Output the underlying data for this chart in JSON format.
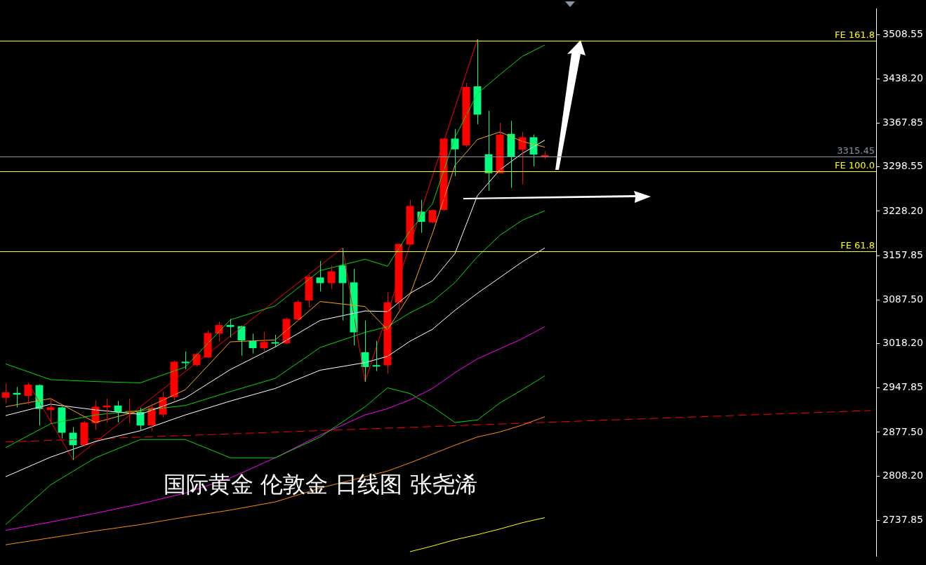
{
  "chart_data": {
    "type": "candlestick",
    "categories": [
      null,
      null,
      null,
      null,
      null,
      null,
      null,
      null,
      null,
      null,
      null,
      null,
      null,
      null,
      null,
      null,
      null,
      null,
      null,
      null,
      null,
      null,
      null,
      null,
      null,
      null,
      null,
      null,
      null,
      null,
      null,
      null,
      null,
      null,
      null,
      null,
      null,
      null,
      null,
      null,
      null,
      null,
      null,
      null,
      null,
      null,
      null,
      null,
      null,
      null,
      null,
      null,
      null,
      null,
      null,
      null,
      null,
      null,
      null,
      null,
      null,
      null,
      null,
      null,
      null,
      null,
      null,
      null,
      null,
      null,
      null,
      null,
      null,
      null,
      null,
      null,
      null,
      null
    ],
    "ohlc": [
      [
        2932.2,
        2954.8,
        2923.5,
        2940.8
      ],
      [
        2940.0,
        2949.4,
        2917.0,
        2937.2
      ],
      [
        2935.1,
        2955.9,
        2921.7,
        2953.0
      ],
      [
        2952.3,
        2953.4,
        2888.2,
        2914.6
      ],
      [
        2912.7,
        2930.7,
        2891.1,
        2917.0
      ],
      [
        2917.0,
        2918.0,
        2867.7,
        2876.8
      ],
      [
        2876.8,
        2885.7,
        2833.6,
        2857.0
      ],
      [
        2857.0,
        2895.5,
        2855.0,
        2893.0
      ],
      [
        2891.9,
        2927.8,
        2881.1,
        2918.1
      ],
      [
        2917.0,
        2930.7,
        2893.0,
        2919.9
      ],
      [
        2919.9,
        2927.1,
        2893.0,
        2909.8
      ],
      [
        2909.2,
        2930.7,
        2891.9,
        2911.6
      ],
      [
        2909.8,
        2916.3,
        2879.6,
        2888.2
      ],
      [
        2888.2,
        2922.4,
        2879.6,
        2916.3
      ],
      [
        2905.5,
        2941.6,
        2901.2,
        2933.2
      ],
      [
        2933.2,
        2991.0,
        2928.0,
        2989.4
      ],
      [
        2989.4,
        3005.6,
        2977.5,
        2987.2
      ],
      [
        2984.0,
        3003.7,
        2981.8,
        3001.6
      ],
      [
        2996.2,
        3039.3,
        2995.0,
        3035.0
      ],
      [
        3034.0,
        3053.1,
        3021.7,
        3047.7
      ],
      [
        3047.7,
        3057.4,
        3027.9,
        3044.7
      ],
      [
        3045.8,
        3046.9,
        2999.1,
        3023.2
      ],
      [
        3022.5,
        3034.0,
        3002.6,
        3011.0
      ],
      [
        3011.0,
        3036.9,
        3006.3,
        3020.7
      ],
      [
        3019.6,
        3032.2,
        3012.3,
        3018.2
      ],
      [
        3018.8,
        3059.5,
        3017.0,
        3057.4
      ],
      [
        3056.6,
        3087.3,
        3053.8,
        3084.3
      ],
      [
        3086.5,
        3126.8,
        3075.7,
        3124.3
      ],
      [
        3123.2,
        3149.1,
        3100.9,
        3114.2
      ],
      [
        3114.2,
        3142.3,
        3105.2,
        3132.9
      ],
      [
        3142.3,
        3169.6,
        3054.9,
        3114.2
      ],
      [
        3115.3,
        3136.9,
        3015.3,
        3036.1
      ],
      [
        3004.5,
        3054.9,
        2957.7,
        2981.0
      ],
      [
        2984.0,
        3022.5,
        2974.6,
        2981.8
      ],
      [
        2983.6,
        3099.8,
        2970.3,
        3083.6
      ],
      [
        3083.6,
        3177.0,
        3072.8,
        3176.4
      ],
      [
        3175.4,
        3246.3,
        3175.0,
        3236.6
      ],
      [
        3227.6,
        3246.3,
        3194.1,
        3211.4
      ],
      [
        3210.6,
        3231.0,
        3209.2,
        3230.1
      ],
      [
        3230.4,
        3344.0,
        3229.0,
        3343.4
      ],
      [
        3343.4,
        3358.8,
        3284.0,
        3326.5
      ],
      [
        3333.0,
        3431.9,
        3330.1,
        3425.4
      ],
      [
        3426.5,
        3501.0,
        3366.1,
        3381.5
      ],
      [
        3318.6,
        3387.7,
        3261.0,
        3288.7
      ],
      [
        3288.7,
        3368.6,
        3288.0,
        3349.9
      ],
      [
        3351.0,
        3371.5,
        3265.4,
        3315.0
      ],
      [
        3325.8,
        3354.2,
        3270.8,
        3345.6
      ],
      [
        3345.6,
        3349.9,
        3299.5,
        3318.2
      ],
      [
        3315.0,
        3323.6,
        3311.3,
        3315.45
      ],
      null,
      null,
      null,
      null,
      null,
      null,
      null,
      null,
      null,
      null,
      null,
      null,
      null,
      null,
      null,
      null,
      null,
      null,
      null,
      null,
      null,
      null,
      null,
      null,
      null,
      null,
      null,
      null,
      null
    ],
    "colors": [
      "#ff0000",
      "#00ff7f",
      "#ff0000",
      "#00ff7f",
      "#ff0000",
      "#00ff7f",
      "#00ff7f",
      "#ff0000",
      "#ff0000",
      "#ff0000",
      "#00ff7f",
      "#ff0000",
      "#00ff7f",
      "#ff0000",
      "#ff0000",
      "#ff0000",
      "#00ff7f",
      "#ff0000",
      "#ff0000",
      "#ff0000",
      "#00ff7f",
      "#00ff7f",
      "#00ff7f",
      "#ff0000",
      "#00ff7f",
      "#ff0000",
      "#ff0000",
      "#ff0000",
      "#00ff7f",
      "#ff0000",
      "#00ff7f",
      "#00ff7f",
      "#00ff7f",
      "#00ff7f",
      "#ff0000",
      "#ff0000",
      "#ff0000",
      "#00ff7f",
      "#ff0000",
      "#ff0000",
      "#00ff7f",
      "#ff0000",
      "#00ff7f",
      "#00ff7f",
      "#ff0000",
      "#00ff7f",
      "#ff0000",
      "#00ff7f",
      "#ff0000",
      null,
      null,
      null,
      null,
      null,
      null,
      null,
      null,
      null,
      null,
      null,
      null,
      null,
      null,
      null,
      null,
      null,
      null,
      null,
      null,
      null,
      null,
      null,
      null,
      null,
      null,
      null,
      null,
      null
    ],
    "series": [
      {
        "type": "line",
        "color": "#00dd00",
        "values": [
          2986,
          null,
          null,
          null,
          2961,
          null,
          null,
          null,
          2958,
          null,
          null,
          null,
          2956,
          null,
          null,
          null,
          2981,
          null,
          null,
          null,
          3056,
          null,
          null,
          null,
          3078,
          null,
          null,
          null,
          3134,
          null,
          null,
          null,
          3152,
          null,
          3141,
          null,
          3197,
          null,
          3240,
          null,
          3345,
          null,
          3415,
          null,
          3445,
          null,
          3474,
          null,
          3492,
          null,
          null,
          null,
          null,
          null,
          null,
          null,
          null,
          null,
          null,
          null,
          null,
          null,
          null,
          null,
          null,
          null,
          null,
          null,
          null,
          null,
          null,
          null,
          null,
          null,
          null,
          null,
          null,
          null
        ]
      },
      {
        "type": "line",
        "color": "#ffa500",
        "values": [
          2918,
          null,
          null,
          null,
          2931,
          null,
          null,
          null,
          2893,
          null,
          null,
          null,
          2912,
          null,
          null,
          null,
          2945,
          null,
          null,
          null,
          3021,
          null,
          null,
          null,
          3024,
          null,
          null,
          null,
          3085,
          null,
          null,
          null,
          3077,
          null,
          3040,
          null,
          3096,
          null,
          3193,
          null,
          3301,
          null,
          3342,
          null,
          3354,
          null,
          3339,
          null,
          3330,
          null,
          null,
          null,
          null,
          null,
          null,
          null,
          null,
          null,
          null,
          null,
          null,
          null,
          null,
          null,
          null,
          null,
          null,
          null,
          null,
          null,
          null,
          null,
          null,
          null,
          null,
          null,
          null,
          null
        ]
      },
      {
        "type": "line",
        "color": "#ffffff",
        "values": [
          2904,
          null,
          null,
          null,
          2922,
          null,
          null,
          null,
          2913,
          null,
          null,
          null,
          2906,
          null,
          null,
          null,
          2932,
          null,
          null,
          null,
          2977,
          null,
          null,
          null,
          3013,
          null,
          null,
          null,
          3055,
          null,
          null,
          null,
          3070,
          null,
          3069,
          null,
          3098,
          null,
          3118,
          null,
          3161,
          null,
          3253,
          null,
          3294,
          null,
          3320,
          null,
          3341,
          null,
          null,
          null,
          null,
          null,
          null,
          null,
          null,
          null,
          null,
          null,
          null,
          null,
          null,
          null,
          null,
          null,
          null,
          null,
          null,
          null,
          null,
          null,
          null,
          null,
          null,
          null,
          null,
          null
        ]
      },
      {
        "type": "line",
        "color": "#00dd00",
        "values": [
          2853,
          null,
          null,
          null,
          2891,
          null,
          null,
          null,
          2905,
          null,
          null,
          null,
          2912,
          null,
          null,
          null,
          2920,
          null,
          null,
          null,
          2942,
          null,
          null,
          null,
          2963,
          null,
          null,
          null,
          3012,
          null,
          null,
          null,
          3036,
          null,
          3045,
          null,
          3067,
          null,
          3085,
          null,
          3115,
          null,
          3156,
          null,
          3190,
          null,
          3214,
          null,
          3229,
          null,
          null,
          null,
          null,
          null,
          null,
          null,
          null,
          null,
          null,
          null,
          null,
          null,
          null,
          null,
          null,
          null,
          null,
          null,
          null,
          null,
          null,
          null,
          null,
          null,
          null,
          null,
          null,
          null
        ]
      },
      {
        "type": "line",
        "color": "#ffffff",
        "values": [
          2807,
          null,
          null,
          null,
          2838,
          null,
          null,
          null,
          2863,
          null,
          null,
          null,
          2880,
          null,
          null,
          null,
          2905,
          null,
          null,
          null,
          2927,
          null,
          null,
          null,
          2947,
          null,
          null,
          null,
          2976,
          null,
          null,
          null,
          2988,
          null,
          2998,
          null,
          3022,
          null,
          3041,
          null,
          3071,
          null,
          3098,
          null,
          3123,
          null,
          3148,
          null,
          3170,
          null,
          null,
          null,
          null,
          null,
          null,
          null,
          null,
          null,
          null,
          null,
          null,
          null,
          null,
          null,
          null,
          null,
          null,
          null,
          null,
          null,
          null,
          null,
          null,
          null,
          null,
          null,
          null,
          null
        ]
      },
      {
        "type": "line",
        "color": "#00dd00",
        "values": [
          2731,
          null,
          null,
          null,
          2794,
          null,
          null,
          null,
          2837,
          null,
          null,
          null,
          2866,
          null,
          null,
          null,
          2866,
          null,
          null,
          null,
          2837,
          null,
          null,
          null,
          2837,
          null,
          null,
          null,
          2870,
          null,
          null,
          null,
          2918,
          null,
          2948,
          null,
          2939,
          null,
          2918,
          null,
          2893,
          null,
          2897,
          null,
          2924,
          null,
          2945,
          null,
          2967,
          null,
          null,
          null,
          null,
          null,
          null,
          null,
          null,
          null,
          null,
          null,
          null,
          null,
          null,
          null,
          null,
          null,
          null,
          null,
          null,
          null,
          null,
          null,
          null,
          null,
          null,
          null,
          null,
          null
        ]
      },
      {
        "type": "line",
        "color": "#ff00ff",
        "values": [
          2722,
          null,
          null,
          null,
          2735,
          null,
          null,
          null,
          2749,
          null,
          null,
          null,
          2764,
          null,
          null,
          null,
          2781,
          null,
          null,
          null,
          2805,
          null,
          null,
          null,
          2837,
          null,
          null,
          null,
          2873,
          null,
          null,
          null,
          2905,
          null,
          2915,
          null,
          2929,
          null,
          2947,
          null,
          2972,
          null,
          2994,
          null,
          3010,
          null,
          3026,
          null,
          3045,
          null,
          null,
          null,
          null,
          null,
          null,
          null,
          null,
          null,
          null,
          null,
          null,
          null,
          null,
          null,
          null,
          null,
          null,
          null,
          null,
          null,
          null,
          null,
          null,
          null,
          null,
          null,
          null,
          null
        ]
      },
      {
        "type": "line",
        "color": "#ff8c00",
        "values": [
          2699,
          null,
          null,
          null,
          2710,
          null,
          null,
          null,
          2721,
          null,
          null,
          null,
          2731,
          null,
          null,
          null,
          2743,
          null,
          null,
          null,
          2754,
          null,
          null,
          null,
          2767,
          null,
          null,
          null,
          2789,
          null,
          null,
          null,
          2807,
          null,
          2816,
          null,
          2829,
          null,
          2843,
          null,
          2857,
          null,
          2870,
          null,
          2878,
          null,
          2889,
          null,
          2902,
          null,
          null,
          null,
          null,
          null,
          null,
          null,
          null,
          null,
          null,
          null,
          null,
          null,
          null,
          null,
          null,
          null,
          null,
          null,
          null,
          null,
          null,
          null,
          null,
          null,
          null,
          null,
          null,
          null
        ]
      },
      {
        "type": "line",
        "color": "#ffff00",
        "values": [
          null,
          null,
          null,
          null,
          null,
          null,
          null,
          null,
          null,
          null,
          null,
          null,
          null,
          null,
          null,
          null,
          null,
          null,
          null,
          null,
          null,
          null,
          null,
          null,
          null,
          null,
          null,
          null,
          null,
          null,
          null,
          null,
          null,
          null,
          null,
          null,
          2688,
          null,
          2697,
          null,
          2707,
          null,
          2715,
          null,
          2724,
          null,
          2734,
          null,
          2742,
          null,
          null,
          null,
          null,
          null,
          null,
          null,
          null,
          null,
          null,
          null,
          null,
          null,
          null,
          null,
          null,
          null,
          null,
          null,
          null,
          null,
          null,
          null,
          null,
          null,
          null,
          null,
          null,
          null
        ]
      },
      {
        "type": "line",
        "color": "#ff0000",
        "line_style": "dashed",
        "values": [
          2862,
          null,
          null,
          null,
          null,
          null,
          null,
          null,
          null,
          null,
          null,
          null,
          null,
          null,
          null,
          null,
          null,
          null,
          null,
          null,
          null,
          null,
          null,
          null,
          null,
          null,
          null,
          null,
          null,
          null,
          null,
          null,
          null,
          null,
          null,
          null,
          null,
          null,
          null,
          null,
          null,
          null,
          null,
          null,
          null,
          null,
          null,
          null,
          null,
          null,
          null,
          null,
          null,
          null,
          null,
          null,
          null,
          null,
          null,
          null,
          null,
          null,
          null,
          null,
          null,
          null,
          null,
          null,
          null,
          null,
          null,
          null,
          null,
          null,
          null,
          null,
          null,
          2912
        ]
      },
      {
        "type": "line",
        "color": "#ff0000",
        "values": [
          null,
          null,
          2956,
          null,
          null,
          null,
          2834,
          null,
          null,
          null,
          null,
          null,
          null,
          null,
          null,
          null,
          null,
          null,
          null,
          null,
          null,
          null,
          null,
          null,
          null,
          null,
          null,
          null,
          null,
          null,
          3170,
          null,
          2958,
          null,
          null,
          null,
          null,
          null,
          null,
          null,
          null,
          null,
          3501,
          null,
          null,
          null,
          null,
          null,
          null,
          null,
          null,
          null,
          null,
          null,
          null,
          null,
          null,
          null,
          null,
          null,
          null,
          null,
          null,
          null,
          null,
          null,
          null,
          null,
          null,
          null,
          null,
          null,
          null,
          null,
          null,
          null,
          null,
          null
        ]
      }
    ],
    "ylim": [
      2680.7,
      3549.6
    ],
    "yticks": [
      3508.55,
      {
        "value": 3438.2,
        "label": "3438.20"
      },
      3367.85,
      3298.55,
      {
        "value": 3228.2,
        "label": "3228.20"
      },
      3157.85,
      {
        "value": 3087.5,
        "label": "3087.50"
      },
      {
        "value": 3018.2,
        "label": "3018.20"
      },
      2947.85,
      {
        "value": 2877.5,
        "label": "2877.50"
      },
      {
        "value": 2808.2,
        "label": "2808.20"
      },
      2737.85
    ],
    "ref_lines": [
      {
        "axis": "y",
        "value": 3498.8,
        "label": "FE 161.8",
        "color": "#ffff00"
      },
      {
        "axis": "y",
        "value": 3291.6,
        "label": "FE 100.0",
        "color": "#ffff00"
      },
      {
        "axis": "y",
        "value": 3164.2,
        "label": "FE 61.8",
        "color": "#ffff00"
      },
      {
        "axis": "y",
        "value": 3315.45,
        "label": "3315.45",
        "color": "#8a96a3"
      }
    ],
    "annotations": [
      "国际黄金 伦敦金 日线图 张尧浠"
    ],
    "tick_labels": "y",
    "legend": false,
    "grid": false,
    "marker": "none"
  }
}
